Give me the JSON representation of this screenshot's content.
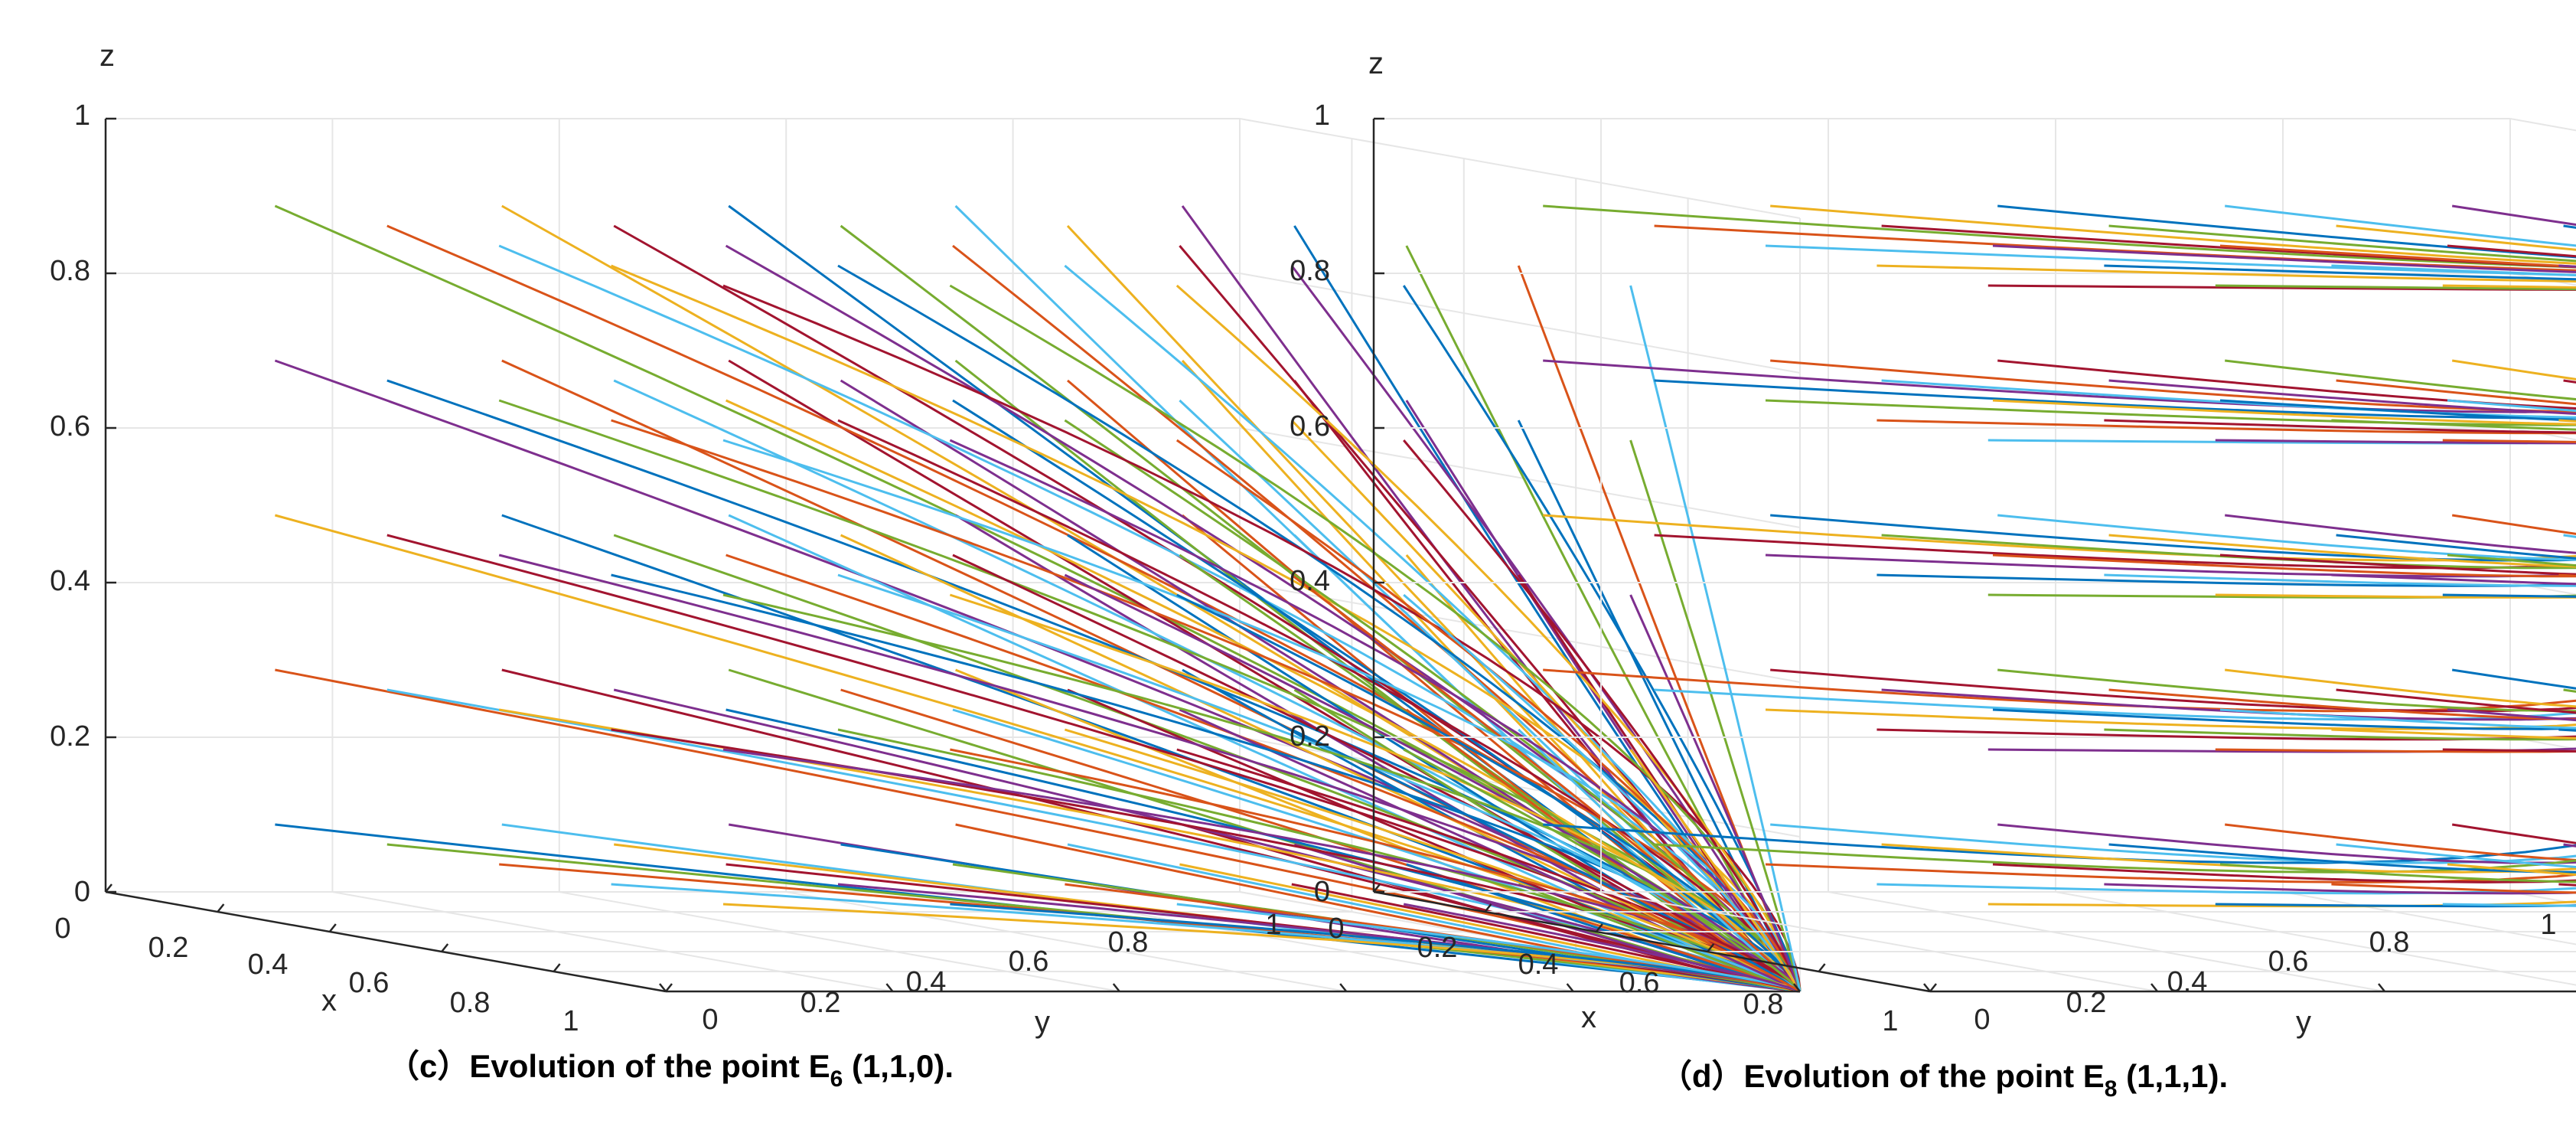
{
  "colors": {
    "series_palette": [
      "#0072BD",
      "#D95319",
      "#EDB120",
      "#7E2F8E",
      "#77AC30",
      "#4DBEEE",
      "#A2142F"
    ],
    "axis": "#262626",
    "grid": "#e6e6e6"
  },
  "chart_data": [
    {
      "type": "line",
      "title_prefix": "（c）",
      "title_text": "Evolution of the point E",
      "title_subscript": "6",
      "title_suffix": " (1,1,0).",
      "xlabel": "x",
      "ylabel": "y",
      "zlabel": "z",
      "xlim": [
        0,
        1
      ],
      "ylim": [
        0,
        1
      ],
      "zlim": [
        0,
        1
      ],
      "x_ticks": [
        "0",
        "0.2",
        "0.4",
        "0.6",
        "0.8",
        "1"
      ],
      "y_ticks": [
        "0",
        "0.2",
        "0.4",
        "0.6",
        "0.8",
        "1"
      ],
      "z_ticks": [
        "0",
        "0.2",
        "0.4",
        "0.6",
        "0.8",
        "1"
      ],
      "grid": true,
      "initial_grid": [
        0.1,
        0.3,
        0.5,
        0.7,
        0.9
      ],
      "end_point": [
        1,
        1,
        0
      ]
    },
    {
      "type": "line",
      "title_prefix": "（d）",
      "title_text": "Evolution of the point E",
      "title_subscript": "8",
      "title_suffix": " (1,1,1).",
      "xlabel": "x",
      "ylabel": "y",
      "zlabel": "z",
      "xlim": [
        0,
        1
      ],
      "ylim": [
        0,
        1
      ],
      "zlim": [
        0,
        1
      ],
      "x_ticks": [
        "0",
        "0.2",
        "0.4",
        "0.6",
        "0.8",
        "1"
      ],
      "y_ticks": [
        "0",
        "0.2",
        "0.4",
        "0.6",
        "0.8",
        "1"
      ],
      "z_ticks": [
        "0",
        "0.2",
        "0.4",
        "0.6",
        "0.8",
        "1"
      ],
      "grid": true,
      "initial_grid": [
        0.1,
        0.3,
        0.5,
        0.7,
        0.9
      ],
      "end_point": [
        1,
        1,
        1
      ]
    }
  ]
}
